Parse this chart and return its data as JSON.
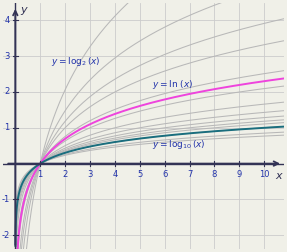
{
  "xlim": [
    -0.5,
    10.8
  ],
  "ylim": [
    -2.4,
    4.5
  ],
  "xticks": [
    1,
    2,
    3,
    4,
    5,
    6,
    7,
    8,
    9,
    10
  ],
  "yticks": [
    -2,
    -1,
    1,
    2,
    3,
    4
  ],
  "background_color": "#f0f0e8",
  "grid_color": "#cccccc",
  "gray_bases": [
    1.4,
    1.6,
    1.8,
    2.0,
    2.5,
    3.0,
    4.0,
    5.0,
    6.0,
    7.0,
    8.0,
    10.0,
    15.0,
    20.0
  ],
  "gray_color": "#b8b8b8",
  "ln_color": "#ee44dd",
  "log10_color": "#1a6e7e",
  "label_color": "#2233aa",
  "axis_color": "#333355",
  "tick_color": "#2233aa"
}
